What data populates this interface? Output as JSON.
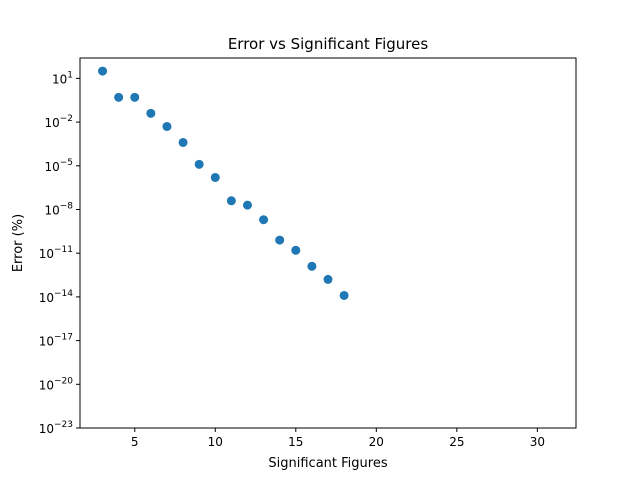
{
  "chart_data": {
    "type": "scatter",
    "title": "Error vs Significant Figures",
    "xlabel": "Significant Figures",
    "ylabel": "Error (%)",
    "xlim": [
      1.6,
      32.4
    ],
    "ylim_log10": [
      -23,
      2.4
    ],
    "y_scale": "log",
    "x_ticks": [
      5,
      10,
      15,
      20,
      25,
      30
    ],
    "y_tick_exponents": [
      1,
      -2,
      -5,
      -8,
      -11,
      -14,
      -17,
      -20,
      -23
    ],
    "marker_color": "#1f77b4",
    "grid": false,
    "legend": "none",
    "x": [
      3,
      4,
      5,
      6,
      7,
      8,
      9,
      10,
      11,
      12,
      13,
      14,
      15,
      16,
      17,
      18
    ],
    "y_log10": [
      1.5,
      -0.3,
      -0.3,
      -1.4,
      -2.3,
      -3.4,
      -4.9,
      -5.8,
      -7.4,
      -7.7,
      -8.7,
      -10.1,
      -10.8,
      -11.9,
      -12.8,
      -13.9
    ]
  }
}
